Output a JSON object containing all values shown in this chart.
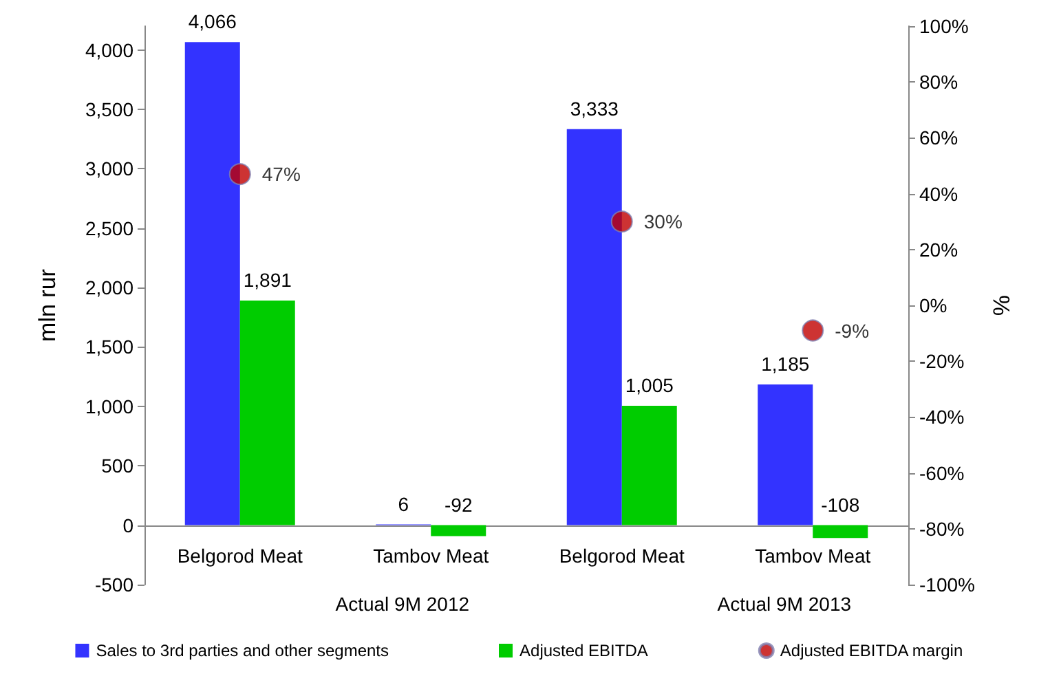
{
  "chart_data": {
    "type": "bar",
    "ylabel": "mln rur",
    "y2label": "%",
    "categories": [
      "Belgorod Meat",
      "Tambov Meat",
      "Belgorod Meat",
      "Tambov Meat"
    ],
    "annotations": [
      "Actual 9M 2012",
      "Actual 9M 2013"
    ],
    "series": [
      {
        "name": "Sales to 3rd parties and other segments",
        "color": "#3333ff",
        "values": [
          4066,
          6,
          3333,
          1185
        ],
        "value_labels": [
          "4,066",
          "6",
          "3,333",
          "1,185"
        ]
      },
      {
        "name": "Adjusted EBITDA",
        "color": "#00cc00",
        "values": [
          1891,
          -92,
          1005,
          -108
        ],
        "value_labels": [
          "1,891",
          "-92",
          "1,005",
          "-108"
        ]
      },
      {
        "name": "Adjusted EBITDA margin",
        "type": "scatter",
        "axis": "y2",
        "marker": "circle",
        "color": "#c00000",
        "values": [
          47,
          null,
          30,
          -9
        ],
        "value_labels": [
          "47%",
          null,
          "30%",
          "-9%"
        ]
      }
    ],
    "ylim": [
      -500,
      4200
    ],
    "yticks": [
      {
        "value": -500,
        "label": "-500"
      },
      {
        "value": 0,
        "label": "0"
      },
      {
        "value": 500,
        "label": "500"
      },
      {
        "value": 1000,
        "label": "1,000"
      },
      {
        "value": 1500,
        "label": "1,500"
      },
      {
        "value": 2000,
        "label": "2,000"
      },
      {
        "value": 2500,
        "label": "2,500"
      },
      {
        "value": 3000,
        "label": "3,000"
      },
      {
        "value": 3500,
        "label": "3,500"
      },
      {
        "value": 4000,
        "label": "4,000"
      }
    ],
    "y2lim": [
      -100,
      100
    ],
    "y2ticks": [
      {
        "value": -100,
        "label": "-100%"
      },
      {
        "value": -80,
        "label": "-80%"
      },
      {
        "value": -60,
        "label": "-60%"
      },
      {
        "value": -40,
        "label": "-40%"
      },
      {
        "value": -20,
        "label": "-20%"
      },
      {
        "value": 0,
        "label": "0%"
      },
      {
        "value": 20,
        "label": "20%"
      },
      {
        "value": 40,
        "label": "40%"
      },
      {
        "value": 60,
        "label": "60%"
      },
      {
        "value": 80,
        "label": "80%"
      },
      {
        "value": 100,
        "label": "100%"
      }
    ],
    "grid": false,
    "legend": "bottom"
  }
}
